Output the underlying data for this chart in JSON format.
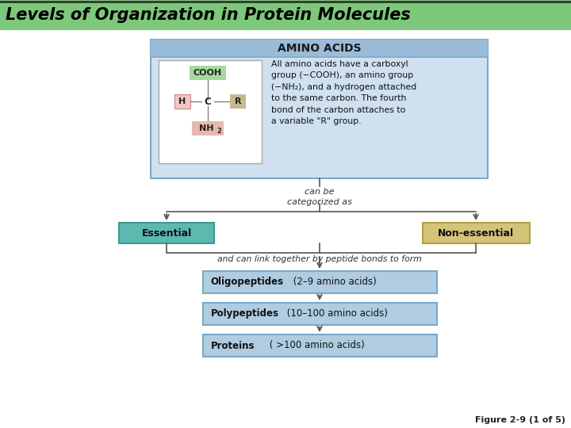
{
  "title": "Levels of Organization in Protein Molecules",
  "title_bg": "#7dc87a",
  "title_color": "#000000",
  "title_fontsize": 15,
  "fig_bg": "#ffffff",
  "title_bar_height": 38,
  "main_box_bg": "#cfe0f0",
  "main_box_header_bg": "#9bbcd8",
  "amino_header_text": "AMINO ACIDS",
  "amino_header_fontsize": 10,
  "amino_body_text": "All amino acids have a carboxyl\ngroup (−COOH), an amino group\n(−NH₂), and a hydrogen attached\nto the same carbon. The fourth\nbond of the carbon attaches to\na variable \"R\" group.",
  "can_be_text": "can be\ncategorized as",
  "link_text": "and can link together by peptide bonds to form",
  "essential_text": "Essential",
  "essential_bg": "#5db8b0",
  "essential_border": "#3a9a92",
  "nonessential_text": "Non-essential",
  "nonessential_bg": "#d4c47a",
  "nonessential_border": "#b0a040",
  "box_bg": "#b0cce0",
  "box_border": "#7aaac8",
  "arrow_color": "#555555",
  "cooh_bg": "#a8d8a0",
  "nh2_bg": "#e8b8b0",
  "h_bg": "#f0c8c0",
  "r_bg": "#c8b890",
  "figure_note": "Figure 2-9 (1 of 5)"
}
